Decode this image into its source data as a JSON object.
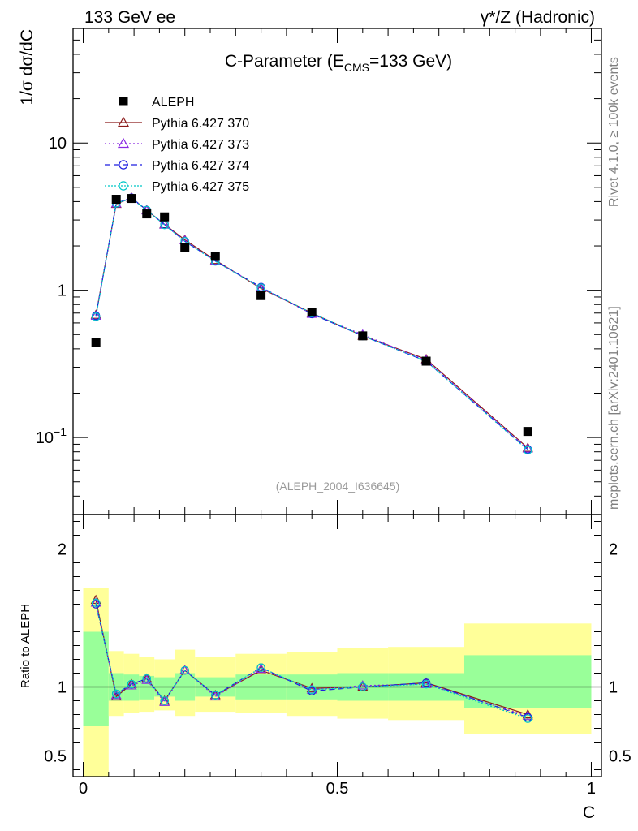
{
  "header": {
    "left": "133 GeV ee",
    "right": "γ*/Z (Hadronic)"
  },
  "side_text": {
    "events": "Rivet 4.1.0, ≥ 100k events",
    "source": "mcplots.cern.ch [arXiv:2401.10621]"
  },
  "chart_data": {
    "type": "line",
    "title_main": "C-Parameter (E",
    "title_sub": "CMS",
    "title_tail": "=133 GeV)",
    "ylabel": "1/σ  dσ/dC",
    "xlabel": "C",
    "ratio_ylabel": "Ratio to ALEPH",
    "reference": "(ALEPH_2004_I636645)",
    "xlim": [
      -0.02,
      1.02
    ],
    "ylim": [
      0.03,
      60
    ],
    "yscale": "log",
    "ratio_ylim": [
      0.35,
      2.25
    ],
    "x_ticks": [
      {
        "v": 0,
        "t": "0"
      },
      {
        "v": 0.5,
        "t": "0.5"
      },
      {
        "v": 1,
        "t": "1"
      }
    ],
    "y_ticks": [
      {
        "v": 0.1,
        "t": "10",
        "sup": "−1"
      },
      {
        "v": 1,
        "t": "1",
        "sup": ""
      },
      {
        "v": 10,
        "t": "10",
        "sup": ""
      }
    ],
    "ratio_ticks": [
      {
        "v": 0.5,
        "t": "0.5"
      },
      {
        "v": 1,
        "t": "1"
      },
      {
        "v": 2,
        "t": "2"
      }
    ],
    "x": [
      0.025,
      0.065,
      0.095,
      0.125,
      0.16,
      0.2,
      0.26,
      0.35,
      0.45,
      0.55,
      0.675,
      0.875
    ],
    "data": {
      "name": "ALEPH",
      "values": [
        0.44,
        4.15,
        4.2,
        3.3,
        3.15,
        1.95,
        1.7,
        0.92,
        0.71,
        0.49,
        0.33,
        0.11
      ]
    },
    "bins": [
      0,
      0.05,
      0.08,
      0.11,
      0.14,
      0.18,
      0.22,
      0.3,
      0.4,
      0.5,
      0.6,
      0.75,
      1.0
    ],
    "band_inner": [
      [
        0.72,
        1.4
      ],
      [
        0.9,
        1.1
      ],
      [
        0.9,
        1.09
      ],
      [
        0.91,
        1.08
      ],
      [
        0.93,
        1.07
      ],
      [
        0.9,
        1.1
      ],
      [
        0.93,
        1.07
      ],
      [
        0.91,
        1.09
      ],
      [
        0.91,
        1.09
      ],
      [
        0.9,
        1.1
      ],
      [
        0.9,
        1.1
      ],
      [
        0.85,
        1.23
      ]
    ],
    "band_outer": [
      [
        0.35,
        1.72
      ],
      [
        0.79,
        1.26
      ],
      [
        0.81,
        1.24
      ],
      [
        0.82,
        1.22
      ],
      [
        0.83,
        1.2
      ],
      [
        0.79,
        1.27
      ],
      [
        0.82,
        1.22
      ],
      [
        0.81,
        1.24
      ],
      [
        0.79,
        1.25
      ],
      [
        0.77,
        1.28
      ],
      [
        0.76,
        1.29
      ],
      [
        0.66,
        1.46
      ]
    ],
    "series": [
      {
        "name": "Pythia 6.427 370",
        "color": "#8b1a1a",
        "dash": "",
        "marker": "triangle",
        "values": [
          0.68,
          3.85,
          4.25,
          3.5,
          2.8,
          2.2,
          1.6,
          1.03,
          0.7,
          0.49,
          0.34,
          0.085
        ],
        "ratio": [
          1.63,
          0.93,
          1.02,
          1.06,
          0.9,
          1.12,
          0.94,
          1.12,
          0.99,
          1.0,
          1.03,
          0.8
        ]
      },
      {
        "name": "Pythia 6.427 373",
        "color": "#8a2be2",
        "dash": "2,3",
        "marker": "triangle",
        "values": [
          0.67,
          3.88,
          4.22,
          3.48,
          2.78,
          2.18,
          1.58,
          1.04,
          0.69,
          0.5,
          0.335,
          0.084
        ],
        "ratio": [
          1.61,
          0.94,
          1.01,
          1.05,
          0.89,
          1.12,
          0.93,
          1.13,
          0.98,
          1.01,
          1.02,
          0.79
        ]
      },
      {
        "name": "Pythia 6.427 374",
        "color": "#1f1fe0",
        "dash": "7,4",
        "marker": "circle",
        "values": [
          0.67,
          3.9,
          4.25,
          3.5,
          2.8,
          2.15,
          1.58,
          1.05,
          0.69,
          0.49,
          0.33,
          0.083
        ],
        "ratio": [
          1.6,
          0.95,
          1.02,
          1.06,
          0.9,
          1.12,
          0.94,
          1.14,
          0.97,
          1.0,
          1.03,
          0.78
        ]
      },
      {
        "name": "Pythia 6.427 375",
        "color": "#00c8c8",
        "dash": "2,2",
        "marker": "circle",
        "values": [
          0.66,
          3.9,
          4.2,
          3.5,
          2.78,
          2.15,
          1.57,
          1.04,
          0.7,
          0.49,
          0.33,
          0.082
        ],
        "ratio": [
          1.61,
          0.95,
          1.02,
          1.06,
          0.9,
          1.12,
          0.94,
          1.14,
          0.98,
          1.0,
          1.02,
          0.77
        ]
      }
    ]
  }
}
